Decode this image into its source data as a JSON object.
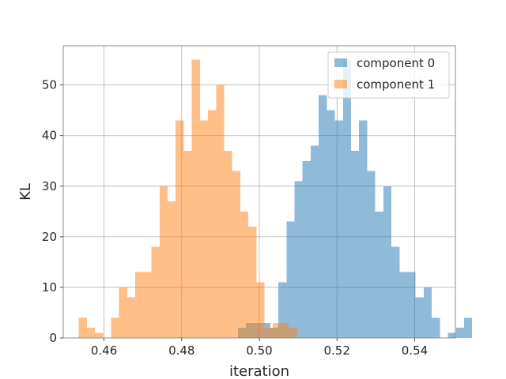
{
  "chart_data": {
    "type": "histogram",
    "xlabel": "iteration",
    "ylabel": "KL",
    "xlim": [
      0.4495,
      0.5505
    ],
    "ylim": [
      0,
      57.75
    ],
    "xticks": [
      0.46,
      0.48,
      0.5,
      0.52,
      0.54
    ],
    "xtick_labels": [
      "0.46",
      "0.48",
      "0.50",
      "0.52",
      "0.54"
    ],
    "yticks": [
      0,
      10,
      20,
      30,
      40,
      50
    ],
    "ytick_labels": [
      "0",
      "10",
      "20",
      "30",
      "40",
      "50"
    ],
    "grid": true,
    "legend_position": "top-right",
    "series": [
      {
        "name": "component 0",
        "color": "#1f77b4",
        "alpha": 0.5,
        "bin_start": 0.4945,
        "bin_width": 0.00208,
        "counts": [
          2,
          3,
          3,
          3,
          2,
          11,
          23,
          31,
          35,
          38,
          48,
          45,
          43,
          55,
          37,
          43,
          33,
          25,
          30,
          18,
          13,
          13,
          8,
          10,
          4,
          0,
          1,
          2,
          4
        ]
      },
      {
        "name": "component 1",
        "color": "#ff7f0e",
        "alpha": 0.5,
        "bin_start": 0.4535,
        "bin_width": 0.00208,
        "counts": [
          4,
          2,
          1,
          0,
          4,
          10,
          8,
          13,
          13,
          18,
          30,
          27,
          43,
          37,
          55,
          43,
          45,
          50,
          37,
          33,
          25,
          22,
          11,
          2,
          3,
          3,
          2
        ]
      }
    ]
  }
}
